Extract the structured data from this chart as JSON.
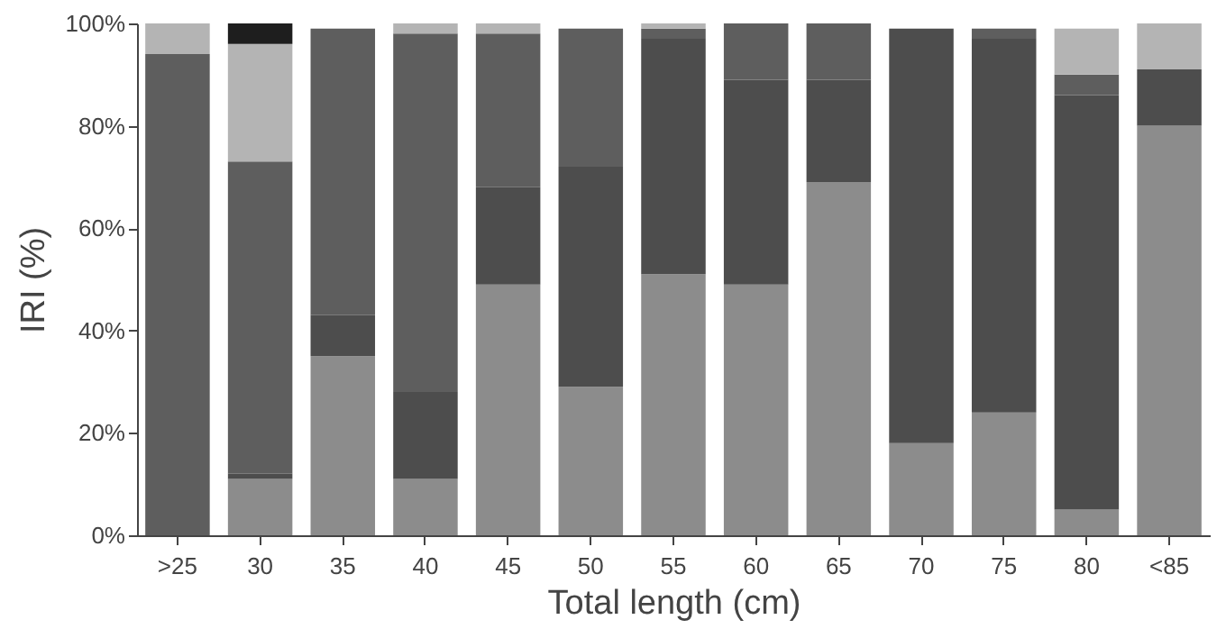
{
  "chart_data": {
    "type": "bar",
    "stacked": true,
    "xlabel": "Total length (cm)",
    "ylabel": "IRI (%)",
    "categories": [
      ">25",
      "30",
      "35",
      "40",
      "45",
      "50",
      "55",
      "60",
      "65",
      "70",
      "75",
      "80",
      "<85"
    ],
    "ylim": [
      0,
      100
    ],
    "yticks": [
      {
        "value": 0,
        "label": "0%"
      },
      {
        "value": 20,
        "label": "20%"
      },
      {
        "value": 40,
        "label": "40%"
      },
      {
        "value": 60,
        "label": "60%"
      },
      {
        "value": 80,
        "label": "80%"
      },
      {
        "value": 100,
        "label": "100%"
      }
    ],
    "series": [
      {
        "color": "#8c8c8c",
        "values": [
          0,
          11,
          35,
          11,
          49,
          29,
          51,
          49,
          69,
          18,
          24,
          5,
          80
        ]
      },
      {
        "color": "#4d4d4d",
        "values": [
          0,
          1,
          8,
          17,
          19,
          43,
          46,
          40,
          20,
          81,
          73,
          81,
          11
        ]
      },
      {
        "color": "#5e5e5e",
        "values": [
          94,
          61,
          56,
          70,
          30,
          27,
          2,
          11,
          11,
          0,
          2,
          4,
          0
        ]
      },
      {
        "color": "#b4b4b4",
        "values": [
          6,
          23,
          0,
          2,
          2,
          0,
          1,
          0,
          0,
          0,
          0,
          9,
          9
        ]
      },
      {
        "color": "#1e1e1e",
        "values": [
          0,
          4,
          0,
          0,
          0,
          0,
          0,
          0,
          0,
          0,
          0,
          0,
          0
        ]
      }
    ]
  }
}
